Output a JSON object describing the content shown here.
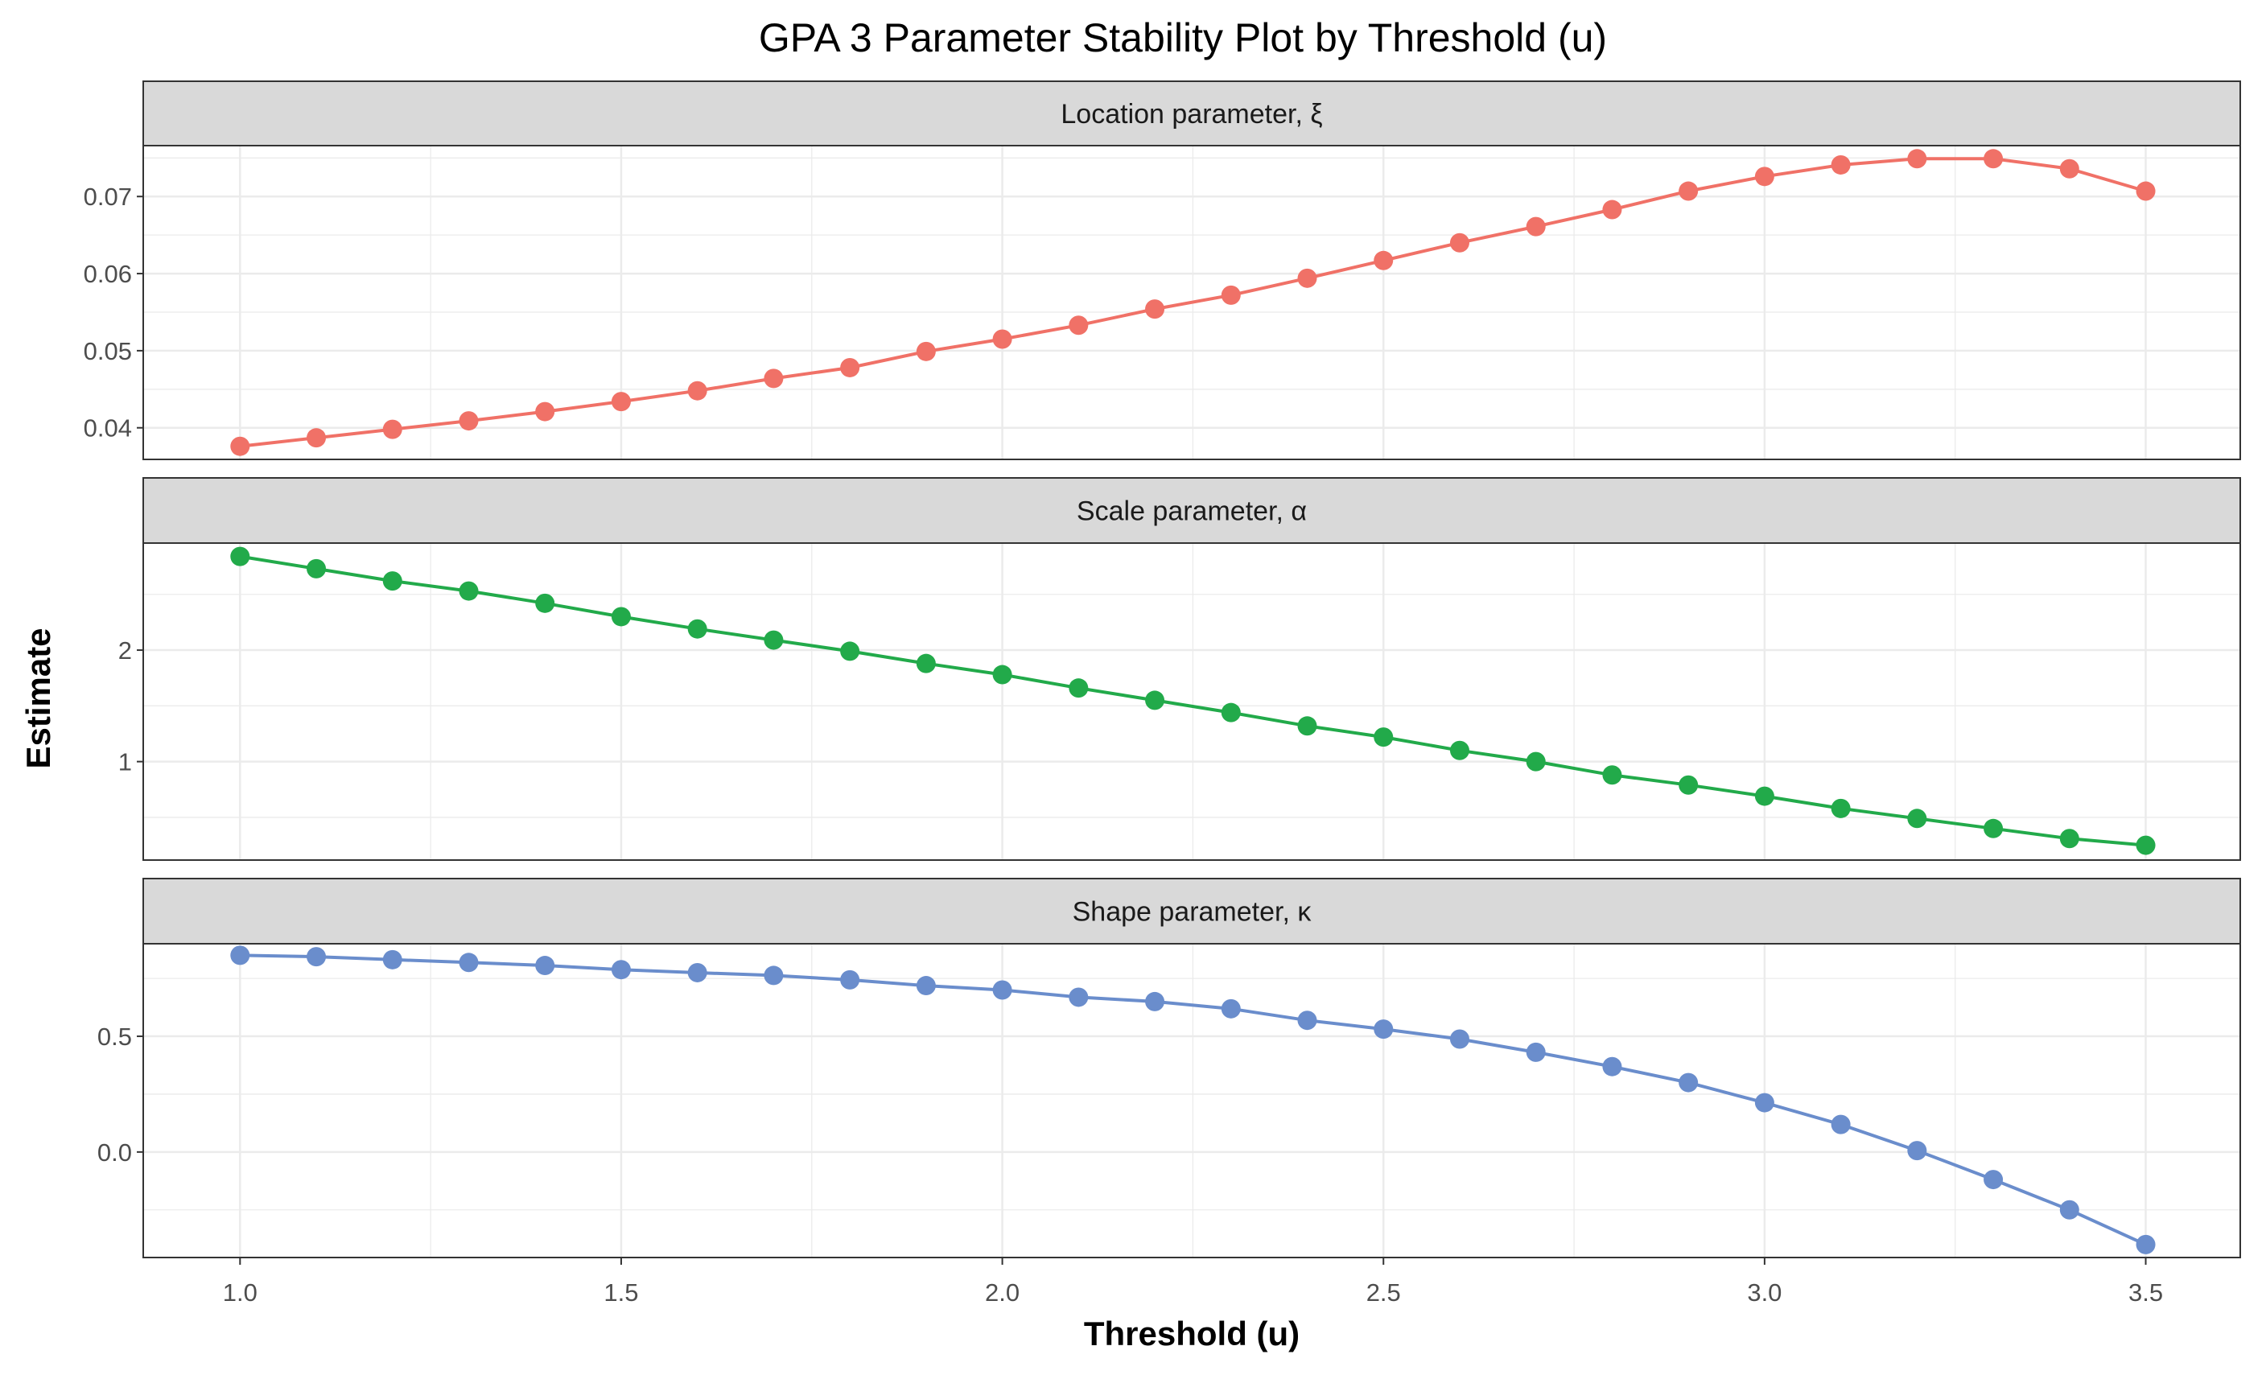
{
  "chart_data": {
    "type": "line",
    "title": "GPA 3 Parameter Stability Plot by Threshold (u)",
    "xlabel": "Threshold (u)",
    "ylabel": "Estimate",
    "grid": true,
    "x": [
      1.0,
      1.1,
      1.2,
      1.3,
      1.4,
      1.5,
      1.6,
      1.7,
      1.8,
      1.9,
      2.0,
      2.1,
      2.2,
      2.3,
      2.4,
      2.5,
      2.6,
      2.7,
      2.8,
      2.9,
      3.0,
      3.1,
      3.2,
      3.3,
      3.4,
      3.5
    ],
    "xlim": [
      0.873,
      3.624
    ],
    "xticks": [
      1.0,
      1.5,
      2.0,
      2.5,
      3.0,
      3.5
    ],
    "xtick_labels": [
      "1.0",
      "1.5",
      "2.0",
      "2.5",
      "3.0",
      "3.5"
    ],
    "panels": [
      {
        "strip": "Location parameter, ξ",
        "color": "#F07167",
        "ylim": [
          0.0359,
          0.0766
        ],
        "yticks": [
          0.04,
          0.05,
          0.06,
          0.07
        ],
        "ytick_labels": [
          "0.04",
          "0.05",
          "0.06",
          "0.07"
        ],
        "values": [
          0.0376,
          0.0387,
          0.0398,
          0.0409,
          0.0421,
          0.0434,
          0.0448,
          0.0464,
          0.0478,
          0.0499,
          0.0515,
          0.0533,
          0.0554,
          0.0572,
          0.0594,
          0.0617,
          0.064,
          0.0661,
          0.0683,
          0.0707,
          0.0726,
          0.0741,
          0.0749,
          0.0749,
          0.0736,
          0.0707
        ]
      },
      {
        "strip": "Scale parameter, α",
        "color": "#22AA4A",
        "ylim": [
          0.117,
          2.96
        ],
        "yticks": [
          1,
          2
        ],
        "ytick_labels": [
          "1",
          "2"
        ],
        "values": [
          2.84,
          2.73,
          2.62,
          2.53,
          2.42,
          2.3,
          2.19,
          2.09,
          1.99,
          1.88,
          1.78,
          1.66,
          1.55,
          1.44,
          1.32,
          1.22,
          1.1,
          1.0,
          0.88,
          0.79,
          0.69,
          0.58,
          0.49,
          0.4,
          0.31,
          0.25
        ]
      },
      {
        "strip": "Shape parameter, κ",
        "color": "#6A8DCC",
        "ylim": [
          -0.456,
          0.9
        ],
        "yticks": [
          0.0,
          0.5
        ],
        "ytick_labels": [
          "0.0",
          "0.5"
        ],
        "values": [
          0.85,
          0.844,
          0.831,
          0.819,
          0.806,
          0.788,
          0.775,
          0.763,
          0.744,
          0.719,
          0.7,
          0.669,
          0.65,
          0.619,
          0.569,
          0.531,
          0.488,
          0.431,
          0.369,
          0.3,
          0.213,
          0.119,
          0.006,
          -0.119,
          -0.25,
          -0.4
        ]
      }
    ]
  }
}
